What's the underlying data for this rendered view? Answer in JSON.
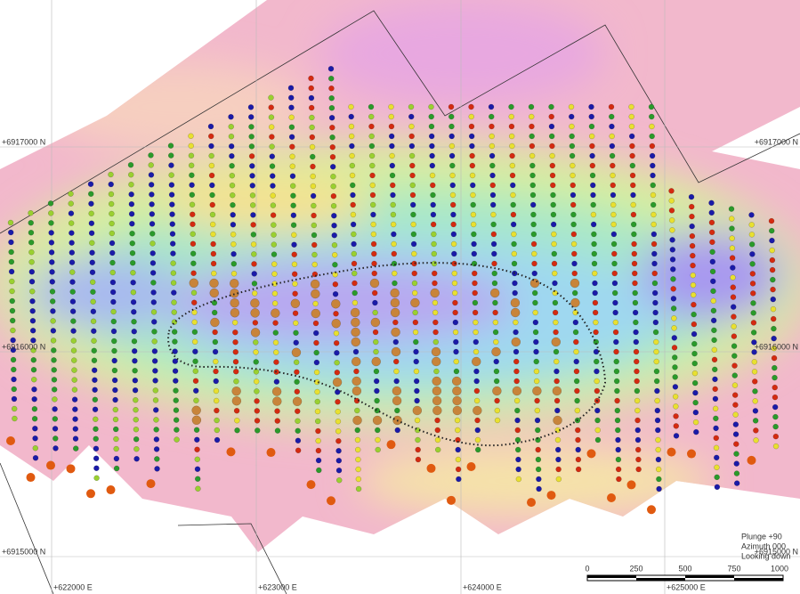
{
  "grid": {
    "northings": [
      "+6917000 N",
      "+6916000 N",
      "+6915000 N"
    ],
    "eastings": [
      "+622000 E",
      "+623000 E",
      "+624000 E",
      "+625000 E"
    ]
  },
  "view": {
    "plunge": "Plunge +90",
    "azimuth": "Azimuth 000",
    "looking": "Looking down"
  },
  "scale_bar": {
    "labels": [
      "0",
      "250",
      "500",
      "750",
      "1000"
    ]
  }
}
